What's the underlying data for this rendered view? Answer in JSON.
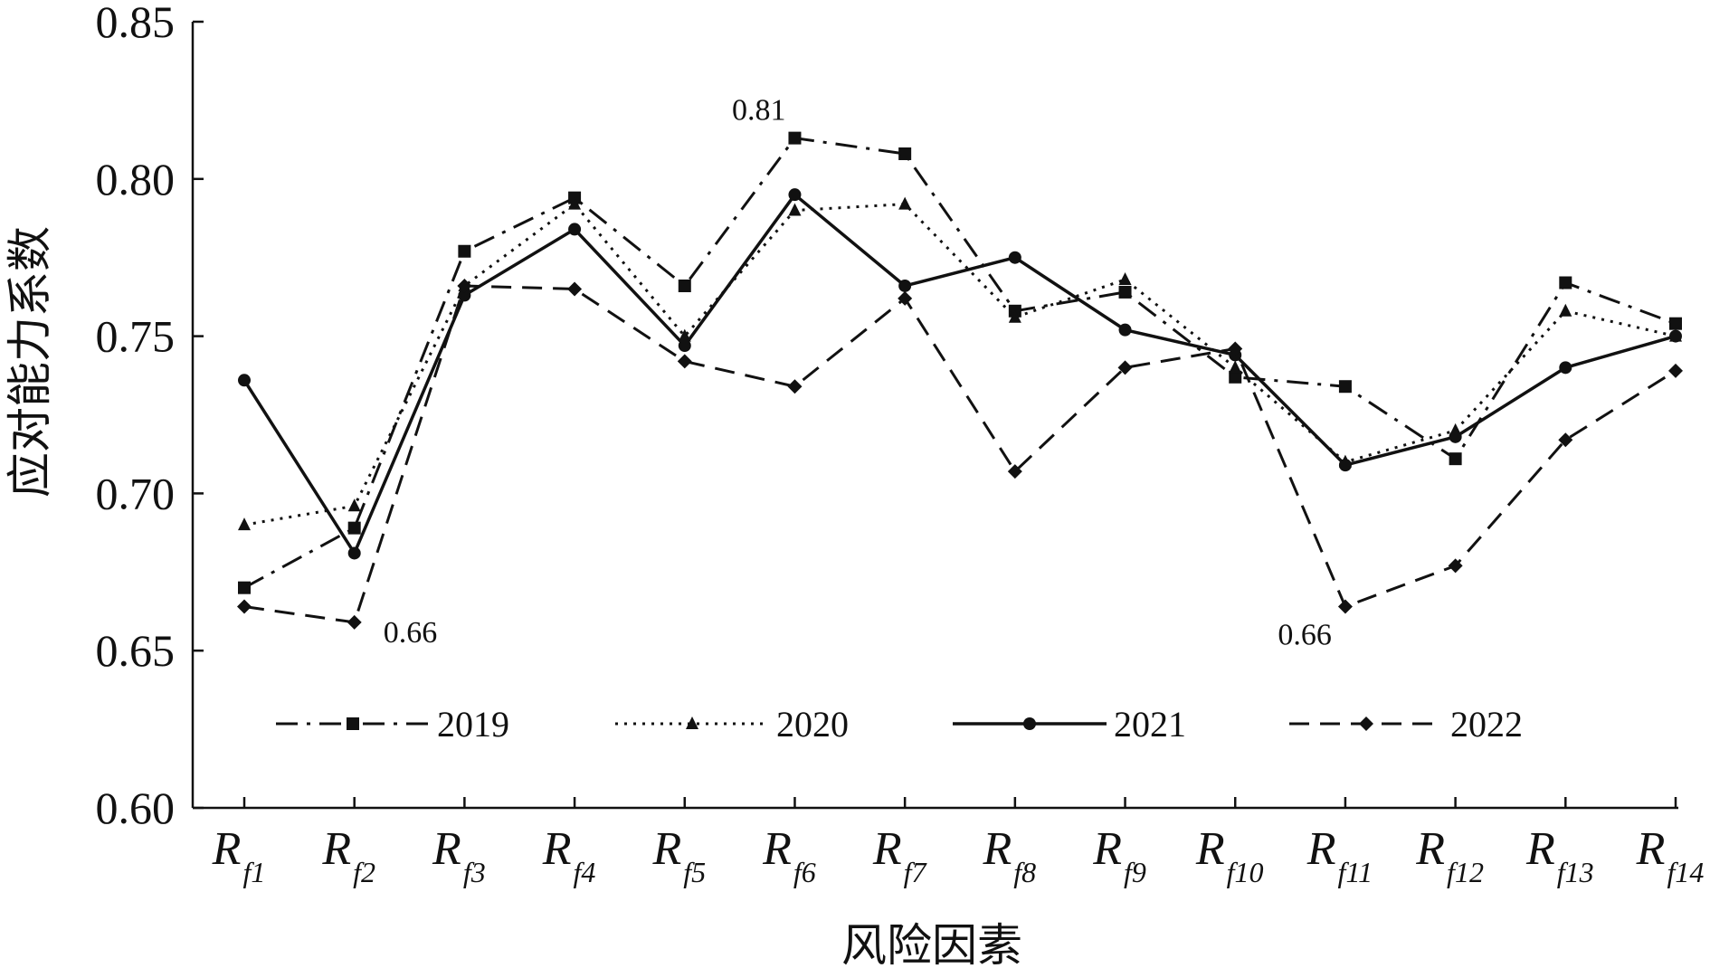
{
  "chart_data": {
    "type": "line",
    "title": "",
    "xlabel": "风险因素",
    "ylabel": "应对能力系数",
    "ylim": [
      0.6,
      0.85
    ],
    "yticks": [
      "0.60",
      "0.65",
      "0.70",
      "0.75",
      "0.80",
      "0.85"
    ],
    "categories": [
      {
        "main": "R",
        "sub": "f1"
      },
      {
        "main": "R",
        "sub": "f2"
      },
      {
        "main": "R",
        "sub": "f3"
      },
      {
        "main": "R",
        "sub": "f4"
      },
      {
        "main": "R",
        "sub": "f5"
      },
      {
        "main": "R",
        "sub": "f6"
      },
      {
        "main": "R",
        "sub": "f7"
      },
      {
        "main": "R",
        "sub": "f8"
      },
      {
        "main": "R",
        "sub": "f9"
      },
      {
        "main": "R",
        "sub": "f10"
      },
      {
        "main": "R",
        "sub": "f11"
      },
      {
        "main": "R",
        "sub": "f12"
      },
      {
        "main": "R",
        "sub": "f13"
      },
      {
        "main": "R",
        "sub": "f14"
      }
    ],
    "series": [
      {
        "name": "2019",
        "marker": "square",
        "dash": "dashdot",
        "values": [
          0.67,
          0.689,
          0.777,
          0.794,
          0.766,
          0.813,
          0.808,
          0.758,
          0.764,
          0.737,
          0.734,
          0.711,
          0.767,
          0.754
        ]
      },
      {
        "name": "2020",
        "marker": "triangle",
        "dash": "dotted",
        "values": [
          0.69,
          0.696,
          0.766,
          0.792,
          0.75,
          0.79,
          0.792,
          0.756,
          0.768,
          0.74,
          0.71,
          0.72,
          0.758,
          0.75
        ]
      },
      {
        "name": "2021",
        "marker": "circle",
        "dash": "solid",
        "values": [
          0.736,
          0.681,
          0.763,
          0.784,
          0.747,
          0.795,
          0.766,
          0.775,
          0.752,
          0.744,
          0.709,
          0.718,
          0.74,
          0.75
        ]
      },
      {
        "name": "2022",
        "marker": "diamond",
        "dash": "dashed",
        "values": [
          0.664,
          0.659,
          0.766,
          0.765,
          0.742,
          0.734,
          0.762,
          0.707,
          0.74,
          0.746,
          0.664,
          0.677,
          0.717,
          0.739
        ]
      }
    ],
    "annotations": [
      {
        "text": "0.81",
        "category": 5,
        "value": 0.813
      },
      {
        "text": "0.66",
        "category": 1,
        "value": 0.659
      },
      {
        "text": "0.66",
        "category": 10,
        "value": 0.664
      }
    ],
    "legend": "bottom-inside",
    "grid": false,
    "colors": {
      "line": "#111111",
      "background": "#ffffff"
    }
  }
}
